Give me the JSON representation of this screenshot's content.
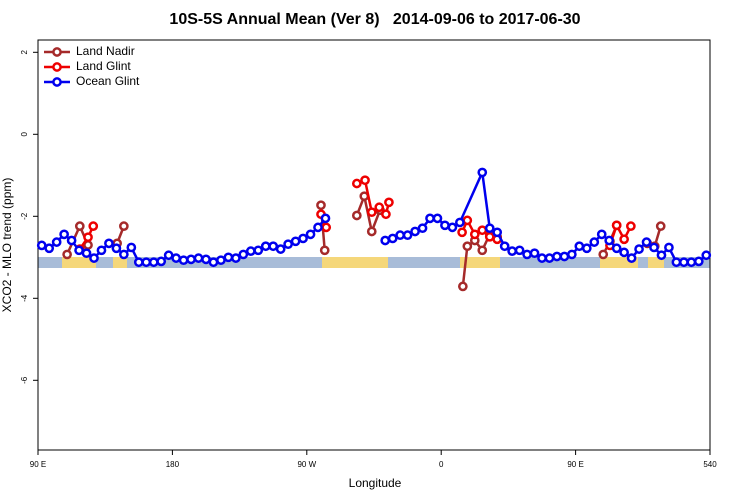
{
  "chart_data": {
    "type": "line",
    "title": "10S-5S Annual Mean (Ver 8)   2014-09-06 to 2017-06-30",
    "x_label": "Longitude",
    "y_label": "XCO2 - MLO trend (ppm)",
    "xlim": [
      90,
      540
    ],
    "ylim": [
      -7.7,
      2.3
    ],
    "xticks": [
      {
        "value": 90,
        "label": "90 E"
      },
      180,
      {
        "value": 270,
        "label": "90 W"
      },
      {
        "value": 360,
        "label": "0"
      },
      {
        "value": 450,
        "label": "90 E"
      },
      540
    ],
    "yticks": [
      -6,
      -4,
      -2,
      0,
      2
    ],
    "legend": "top-left",
    "series": [
      {
        "name": "Land Nadir",
        "color": "#a52a2a",
        "x": [
          109.5,
          118,
          123.5,
          133,
          143,
          147.5,
          213,
          279.5,
          282,
          293,
          303.5,
          308.5,
          313.5,
          319,
          346,
          374.5,
          377.5,
          382.5,
          387.5,
          392.5,
          397.5,
          433,
          468.5,
          473,
          477.5,
          492,
          498,
          503,
          507
        ],
        "values": [
          -2.93,
          -2.24,
          -2.7,
          null,
          -2.66,
          -2.24,
          null,
          -1.73,
          -2.83,
          null,
          -1.98,
          -1.51,
          -2.37,
          -1.85,
          null,
          -3.71,
          -2.73,
          -2.59,
          -2.83,
          -2.44,
          -2.51,
          null,
          -2.93,
          -2.61,
          -2.22,
          null,
          -2.66,
          -2.73,
          -2.24
        ]
      },
      {
        "name": "Land Glint",
        "color": "#ee0000",
        "x": [
          118,
          123.5,
          127,
          203,
          279.5,
          283,
          293,
          303.5,
          309,
          313.5,
          318.5,
          323,
          325,
          349,
          374,
          377.5,
          382.5,
          387.5,
          392.5,
          397.5,
          433,
          473,
          477.5,
          482.5,
          487
        ],
        "values": [
          -2.8,
          -2.51,
          -2.24,
          null,
          -1.95,
          -2.27,
          null,
          -1.2,
          -1.12,
          -1.9,
          -1.78,
          -1.95,
          -1.66,
          null,
          -2.39,
          -2.1,
          -2.44,
          -2.34,
          -2.5,
          -2.56,
          null,
          -2.71,
          -2.22,
          -2.56,
          -2.24
        ]
      },
      {
        "name": "Ocean Glint",
        "color": "#0000ee",
        "x": [
          92.5,
          97.5,
          102.5,
          107.5,
          112.5,
          117.5,
          122.5,
          127.5,
          132.5,
          137.5,
          142.5,
          147.5,
          152.5,
          157.5,
          162.5,
          167.5,
          172.5,
          177.5,
          182.5,
          187.5,
          192.5,
          197.5,
          202.5,
          207.5,
          212.5,
          217.5,
          222.5,
          227.5,
          232.5,
          237.5,
          242.5,
          247.5,
          252.5,
          257.5,
          262.5,
          267.5,
          272.5,
          277.5,
          282.5,
          302.5,
          322.5,
          327.5,
          332.5,
          337.5,
          342.5,
          347.5,
          352.5,
          357.5,
          362.5,
          367.5,
          372.5,
          387.5,
          392.5,
          397.5,
          402.5,
          407.5,
          412.5,
          417.5,
          422.5,
          427.5,
          432.5,
          437.5,
          442.5,
          447.5,
          452.5,
          457.5,
          462.5,
          467.5,
          472.5,
          477.5,
          482.5,
          487.5,
          492.5,
          497.5,
          502.5,
          507.5,
          512.5,
          517.5,
          522.5,
          527.5,
          532.5,
          537.5
        ],
        "values": [
          -2.71,
          -2.78,
          -2.63,
          -2.44,
          -2.59,
          -2.83,
          -2.9,
          -3.02,
          -2.83,
          -2.66,
          -2.78,
          -2.93,
          -2.76,
          -3.12,
          -3.12,
          -3.12,
          -3.1,
          -2.95,
          -3.02,
          -3.07,
          -3.05,
          -3.02,
          -3.05,
          -3.12,
          -3.07,
          -3.0,
          -3.02,
          -2.93,
          -2.85,
          -2.83,
          -2.73,
          -2.73,
          -2.8,
          -2.68,
          -2.61,
          -2.54,
          -2.44,
          -2.27,
          -2.05,
          null,
          -2.59,
          -2.54,
          -2.46,
          -2.46,
          -2.37,
          -2.29,
          -2.05,
          -2.05,
          -2.22,
          -2.27,
          -2.15,
          -0.93,
          -2.29,
          -2.39,
          -2.73,
          -2.85,
          -2.83,
          -2.93,
          -2.9,
          -3.02,
          -3.02,
          -2.98,
          -2.98,
          -2.93,
          -2.73,
          -2.78,
          -2.63,
          -2.44,
          -2.59,
          -2.78,
          -2.88,
          -3.02,
          -2.8,
          -2.63,
          -2.76,
          -2.95,
          -2.76,
          -3.12,
          -3.12,
          -3.12,
          -3.1,
          -2.95
        ]
      }
    ]
  }
}
